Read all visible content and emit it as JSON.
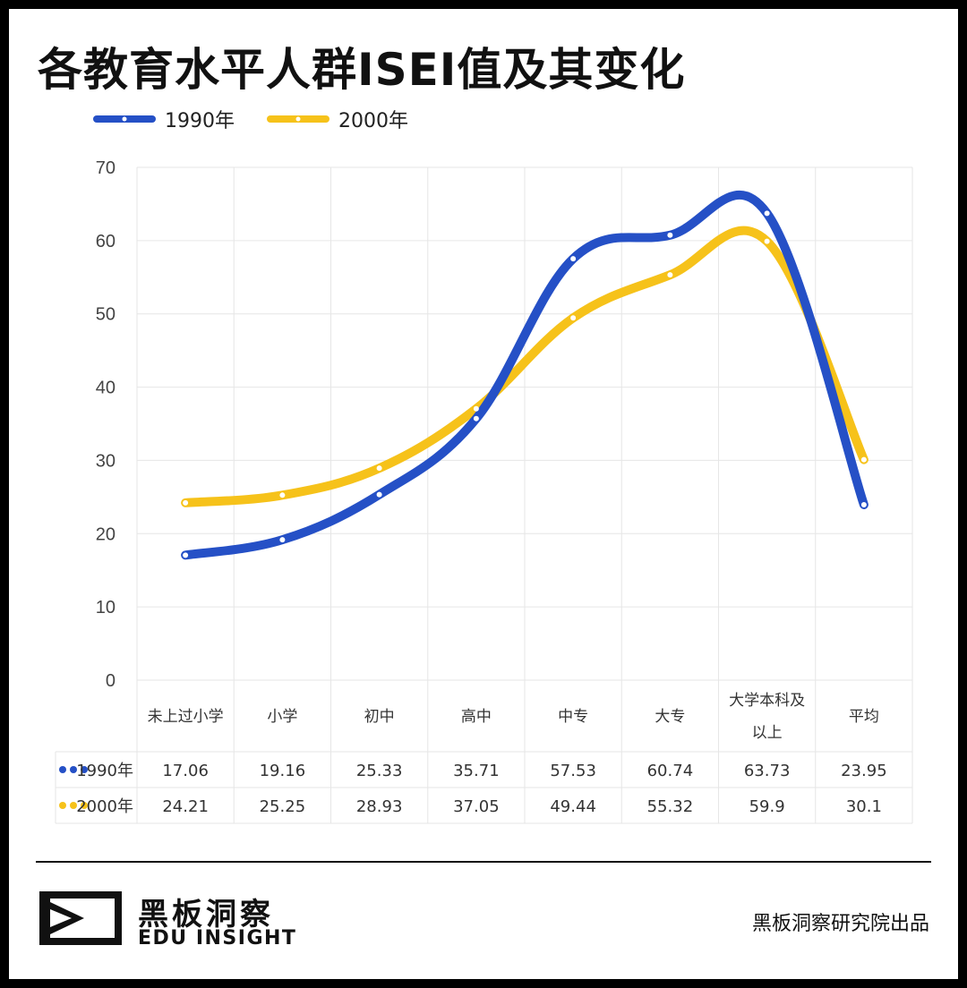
{
  "title": "各教育水平人群ISEI值及其变化",
  "colors": {
    "s1990": "#2550C6",
    "s2000": "#F6C21A",
    "grid": "#E6E6E6",
    "text": "#333333"
  },
  "chart_data": {
    "type": "line",
    "categories": [
      "未上过小学",
      "小学",
      "初中",
      "高中",
      "中专",
      "大专",
      "大学本科及以上",
      "平均"
    ],
    "category_lines": [
      [
        "未上过小学"
      ],
      [
        "小学"
      ],
      [
        "初中"
      ],
      [
        "高中"
      ],
      [
        "中专"
      ],
      [
        "大专"
      ],
      [
        "大学本科及",
        "以上"
      ],
      [
        "平均"
      ]
    ],
    "series": [
      {
        "name": "1990年",
        "color": "#2550C6",
        "values": [
          17.06,
          19.16,
          25.33,
          35.71,
          57.53,
          60.74,
          63.73,
          23.95
        ]
      },
      {
        "name": "2000年",
        "color": "#F6C21A",
        "values": [
          24.21,
          25.25,
          28.93,
          37.05,
          49.44,
          55.32,
          59.9,
          30.1
        ]
      }
    ],
    "table_rows": [
      [
        "17.06",
        "19.16",
        "25.33",
        "35.71",
        "57.53",
        "60.74",
        "63.73",
        "23.95"
      ],
      [
        "24.21",
        "25.25",
        "28.93",
        "37.05",
        "49.44",
        "55.32",
        "59.9",
        "30.1"
      ]
    ],
    "y_ticks": [
      "0",
      "10",
      "20",
      "30",
      "40",
      "50",
      "60",
      "70"
    ],
    "ylim": [
      0,
      70
    ],
    "grid": true,
    "legend": "top-left"
  },
  "footer": {
    "brand_cn": "黑板洞察",
    "brand_en": "EDU INSIGHT",
    "credit": "黑板洞察研究院出品"
  }
}
